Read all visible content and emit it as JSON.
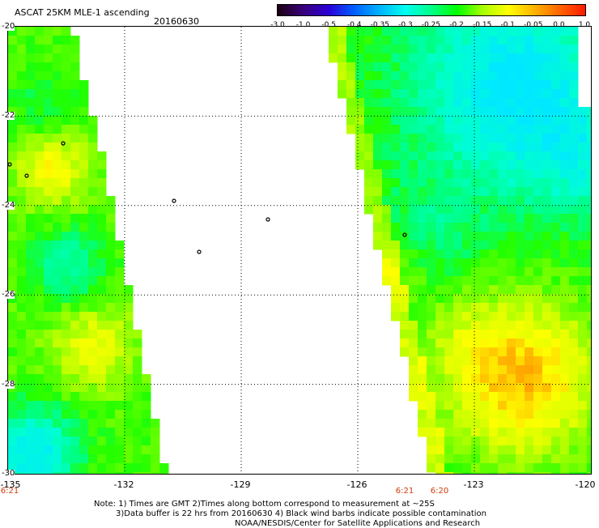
{
  "header": {
    "title": "ASCAT 25KM MLE-1 ascending",
    "date": "20160630"
  },
  "colorbar": {
    "labels": [
      "-3.0",
      "-1.0",
      "-0.5",
      "-0.4",
      "-0.35",
      "-0.3",
      "-0.25",
      "-0.2",
      "-0.15",
      "-0.1",
      "-0.05",
      "0.0",
      "1.0"
    ],
    "stops": [
      "#1a0010",
      "#3a007a",
      "#2a00d8",
      "#0060ff",
      "#00b4ff",
      "#00ffee",
      "#00ff88",
      "#00ff00",
      "#a8ff00",
      "#ffff00",
      "#ffb400",
      "#ff6400",
      "#ff1a00"
    ]
  },
  "axes": {
    "lat_labels": [
      "-20",
      "-22",
      "-24",
      "-26",
      "-28",
      "-30"
    ],
    "lon_labels": [
      "-135",
      "-132",
      "-129",
      "-126",
      "-123",
      "-120"
    ],
    "lat_range": [
      -30,
      -20
    ],
    "lon_range": [
      -135,
      -120
    ],
    "grid": true
  },
  "times": [
    "6:21",
    "6:21",
    "6:20"
  ],
  "notes": {
    "line1": "Note: 1) Times are GMT 2)Times along bottom correspond to measurement at ~25S",
    "line2": "3)Data buffer is 22 hrs from 20160630 4) Black wind barbs indicate possible contamination",
    "line3": "NOAA/NESDIS/Center for Satellite Applications and Research"
  }
}
